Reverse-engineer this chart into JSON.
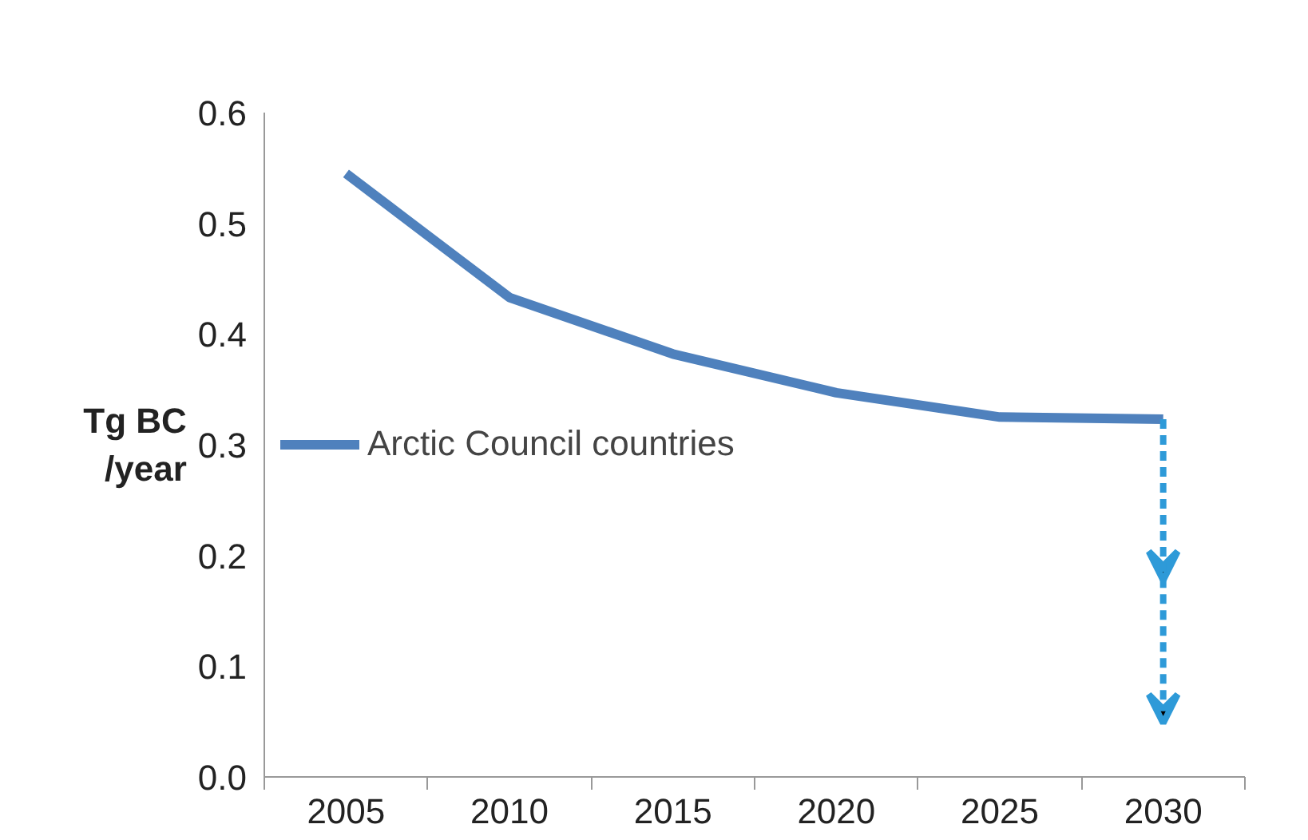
{
  "chart_data": {
    "type": "line",
    "ylabel": "Tg BC\n/year",
    "categories": [
      "2005",
      "2010",
      "2015",
      "2020",
      "2025",
      "2030"
    ],
    "series": [
      {
        "name": "Arctic Council countries",
        "color": "#4f81bd",
        "values": [
          0.545,
          0.433,
          0.382,
          0.347,
          0.325,
          0.323
        ]
      }
    ],
    "ylim": [
      0,
      0.6
    ],
    "yticks": [
      "0.0",
      0.1,
      0.2,
      0.3,
      0.4,
      0.5,
      0.6
    ],
    "grid": false,
    "legend": "left",
    "marker": "none",
    "line_style": "solid"
  }
}
